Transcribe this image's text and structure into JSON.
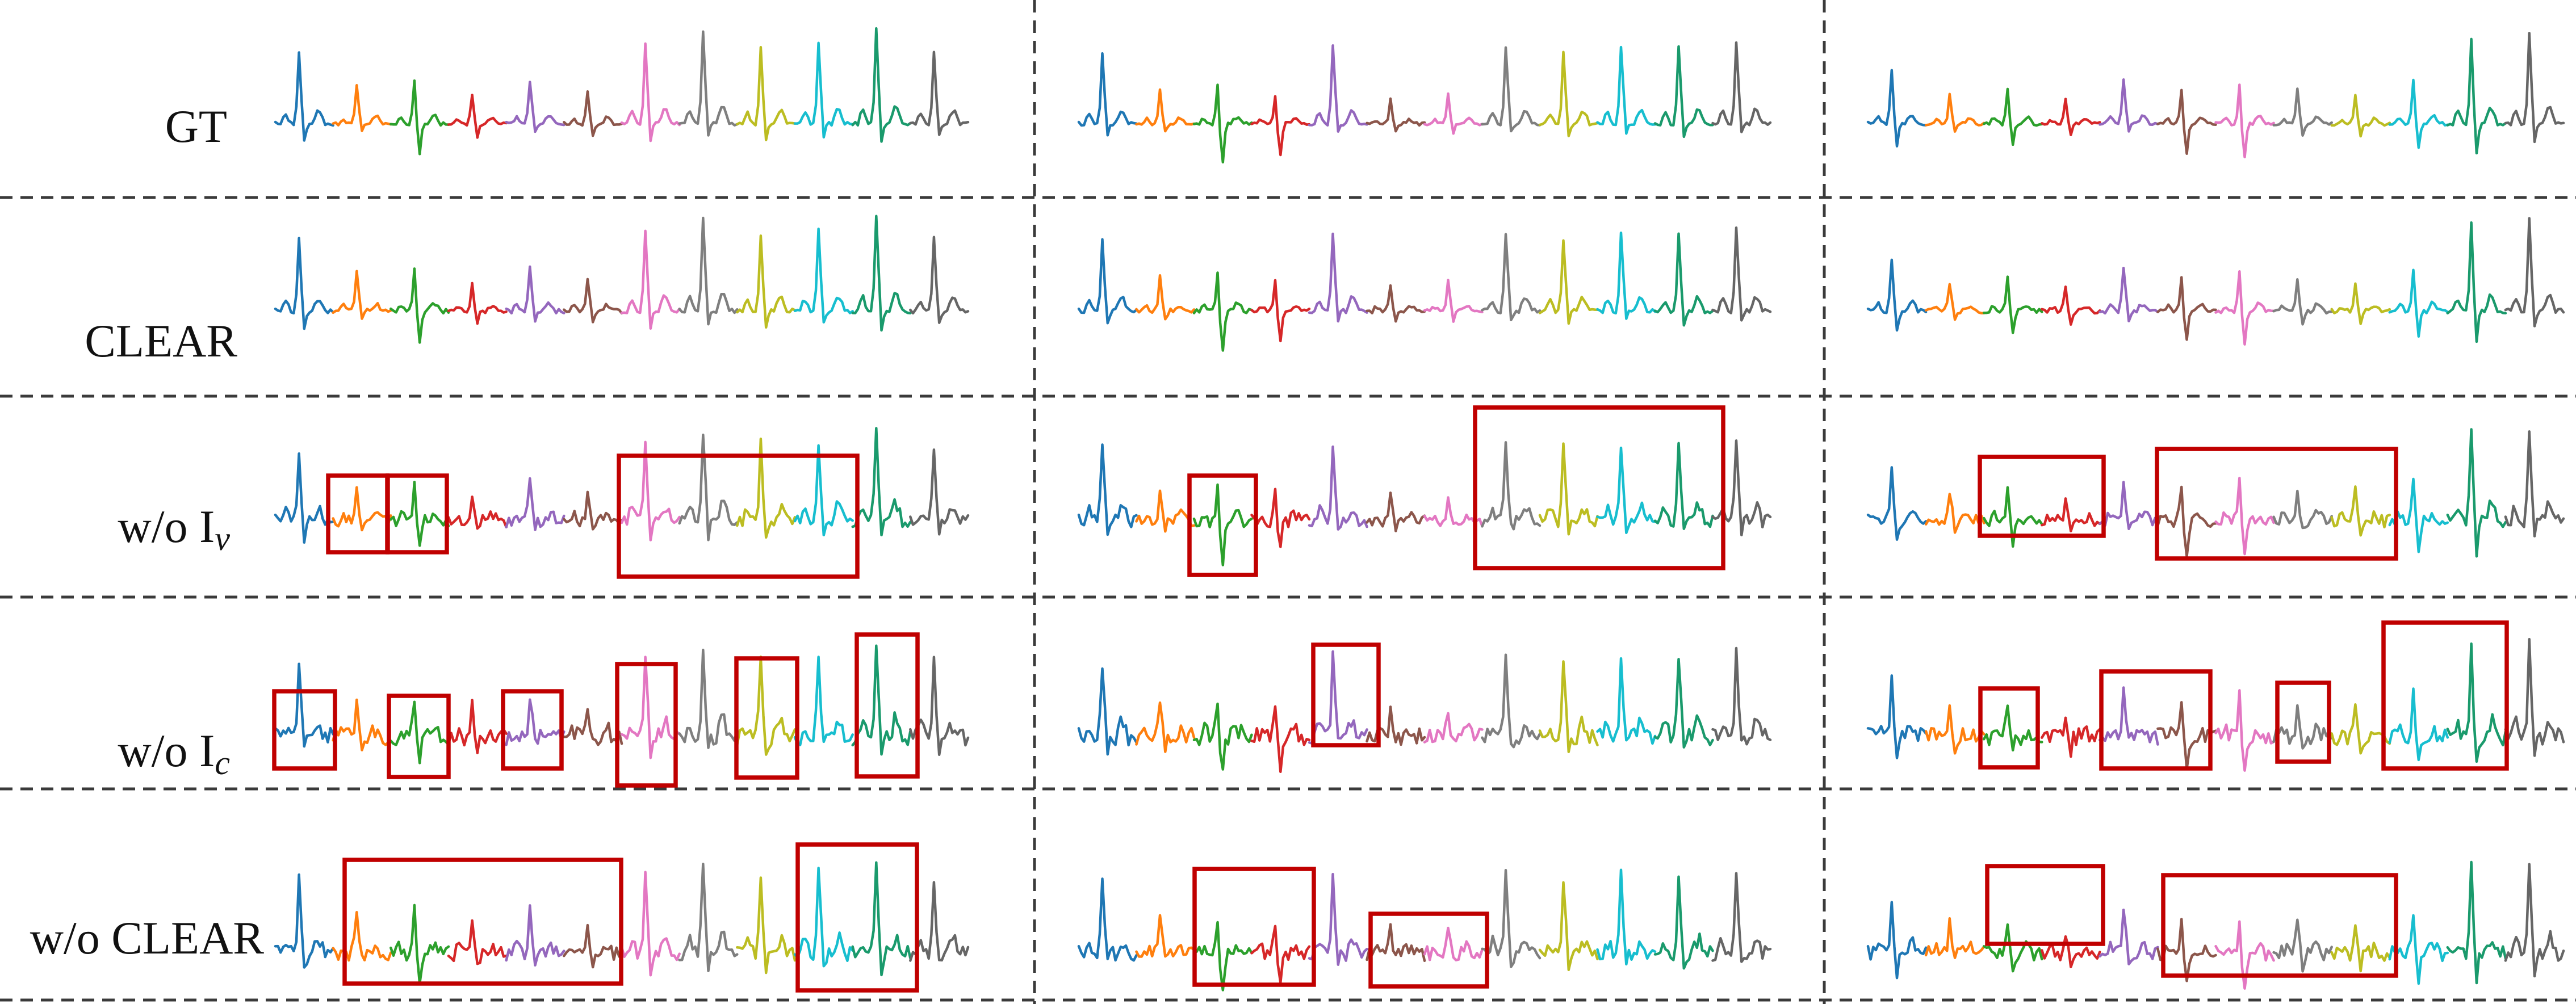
{
  "rows": [
    {
      "id": "gt",
      "label": "GT",
      "subscript": ""
    },
    {
      "id": "clear",
      "label": "CLEAR",
      "subscript": ""
    },
    {
      "id": "wo-iv",
      "label": "w/o I",
      "subscript": "v"
    },
    {
      "id": "wo-ic",
      "label": "w/o I",
      "subscript": "c"
    },
    {
      "id": "wo-clear",
      "label": "w/o CLEAR",
      "subscript": ""
    }
  ],
  "segment_colors": [
    "#1f77b4",
    "#ff7f0e",
    "#2ca02c",
    "#d62728",
    "#9467bd",
    "#8c564b",
    "#e377c2",
    "#7f7f7f",
    "#bcbd22",
    "#17becf",
    "#1a9a6c",
    "#666666"
  ],
  "box_color": "#c00000"
}
